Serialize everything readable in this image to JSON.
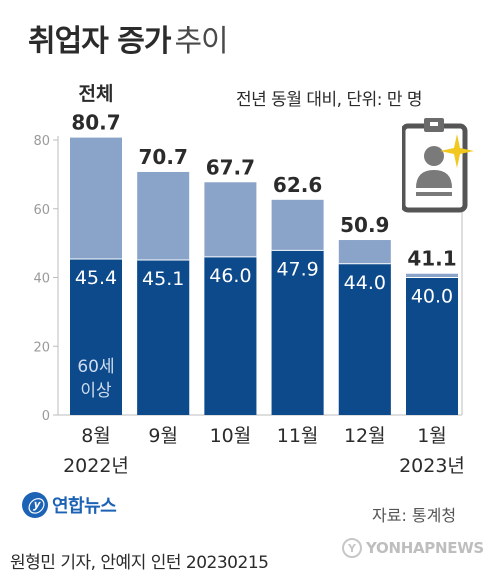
{
  "title": "취업자 증가",
  "title_suffix": "추이",
  "unit_note": "전년 동월 대비, 단위: 만 명",
  "source": "자료: 통계청",
  "byline": "원형민 기자, 안예지 인턴  20230215",
  "logo_text": "연합뉴스",
  "watermark_text": "YONHAPNEWS",
  "colors": {
    "total": "#8aa3c9",
    "seniors": "#0c4a8c",
    "axis": "#bdbdbd",
    "text": "#2b2b2b"
  },
  "icons": [
    "id-badge-icon",
    "sparkle-icon"
  ],
  "chart_data": {
    "type": "bar",
    "stacked": "overlay",
    "categories": [
      "8월",
      "9월",
      "10월",
      "11월",
      "12월",
      "1월"
    ],
    "category_years": [
      "2022년",
      "",
      "",
      "",
      "",
      "2023년"
    ],
    "series": [
      {
        "name": "전체",
        "values": [
          80.7,
          70.7,
          67.7,
          62.6,
          50.9,
          41.1
        ]
      },
      {
        "name": "60세 이상",
        "values": [
          45.4,
          45.1,
          46.0,
          47.9,
          44.0,
          40.0
        ]
      }
    ],
    "ylim": [
      0,
      80
    ],
    "yticks": [
      0,
      20,
      40,
      60,
      80
    ],
    "value_labels_total": [
      "80.7",
      "70.7",
      "67.7",
      "62.6",
      "50.9",
      "41.1"
    ],
    "value_labels_seniors": [
      "45.4",
      "45.1",
      "46.0",
      "47.9",
      "44.0",
      "40.0"
    ],
    "grid": false
  }
}
